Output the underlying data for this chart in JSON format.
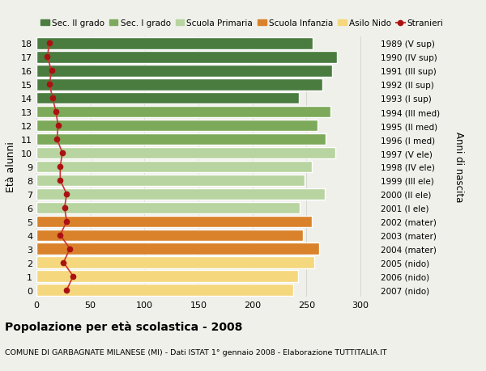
{
  "ages": [
    18,
    17,
    16,
    15,
    14,
    13,
    12,
    11,
    10,
    9,
    8,
    7,
    6,
    5,
    4,
    3,
    2,
    1,
    0
  ],
  "right_labels": [
    "1989 (V sup)",
    "1990 (IV sup)",
    "1991 (III sup)",
    "1992 (II sup)",
    "1993 (I sup)",
    "1994 (III med)",
    "1995 (II med)",
    "1996 (I med)",
    "1997 (V ele)",
    "1998 (IV ele)",
    "1999 (III ele)",
    "2000 (II ele)",
    "2001 (I ele)",
    "2002 (mater)",
    "2003 (mater)",
    "2004 (mater)",
    "2005 (nido)",
    "2006 (nido)",
    "2007 (nido)"
  ],
  "bar_values": [
    256,
    278,
    274,
    265,
    243,
    272,
    260,
    268,
    277,
    255,
    248,
    267,
    244,
    255,
    247,
    262,
    257,
    242,
    238
  ],
  "bar_colors": [
    "#4a7c3f",
    "#4a7c3f",
    "#4a7c3f",
    "#4a7c3f",
    "#4a7c3f",
    "#7daa5a",
    "#7daa5a",
    "#7daa5a",
    "#b8d4a0",
    "#b8d4a0",
    "#b8d4a0",
    "#b8d4a0",
    "#b8d4a0",
    "#d9822b",
    "#d9822b",
    "#d9822b",
    "#f5d77e",
    "#f5d77e",
    "#f5d77e"
  ],
  "stranieri_values": [
    12,
    10,
    14,
    12,
    15,
    18,
    20,
    19,
    24,
    22,
    22,
    28,
    26,
    28,
    22,
    31,
    25,
    34,
    28
  ],
  "title_bold": "Popolazione per età scolastica - 2008",
  "subtitle": "COMUNE DI GARBAGNATE MILANESE (MI) - Dati ISTAT 1° gennaio 2008 - Elaborazione TUTTITALIA.IT",
  "ylabel": "Età alunni",
  "right_ylabel": "Anni di nascita",
  "xlabel_ticks": [
    0,
    50,
    100,
    150,
    200,
    250,
    300
  ],
  "xlim": [
    0,
    315
  ],
  "legend_labels": [
    "Sec. II grado",
    "Sec. I grado",
    "Scuola Primaria",
    "Scuola Infanzia",
    "Asilo Nido",
    "Stranieri"
  ],
  "legend_colors": [
    "#4a7c3f",
    "#7daa5a",
    "#b8d4a0",
    "#d9822b",
    "#f5d77e",
    "#aa1111"
  ],
  "bar_height": 0.85,
  "background_color": "#f0f0eb",
  "grid_color": "#d0d0cc",
  "stranieri_color": "#aa1111",
  "stranieri_line_color": "#cc3333"
}
